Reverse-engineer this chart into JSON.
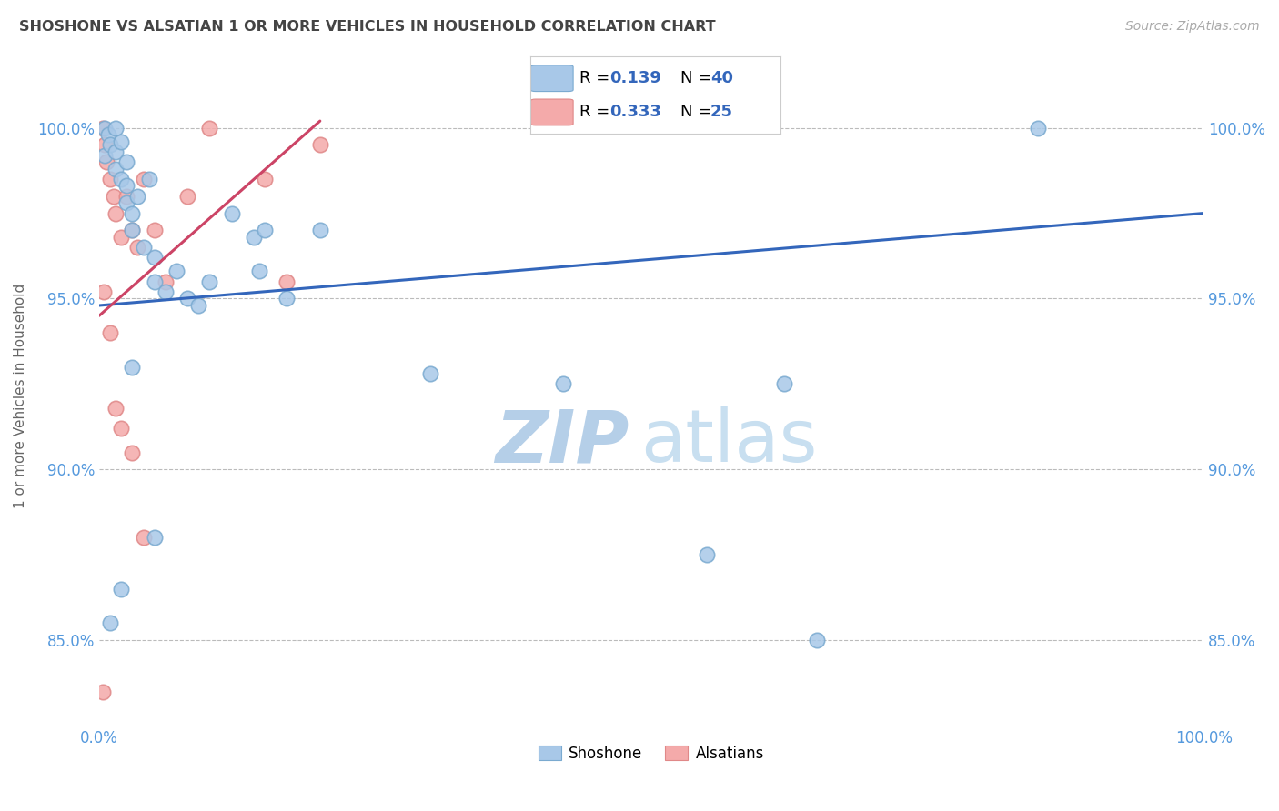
{
  "title": "SHOSHONE VS ALSATIAN 1 OR MORE VEHICLES IN HOUSEHOLD CORRELATION CHART",
  "source": "Source: ZipAtlas.com",
  "ylabel": "1 or more Vehicles in Household",
  "xlim": [
    0,
    100
  ],
  "ylim": [
    82.5,
    101.8
  ],
  "yticks": [
    85,
    90,
    95,
    100
  ],
  "ytick_labels": [
    "85.0%",
    "90.0%",
    "95.0%",
    "100.0%"
  ],
  "xtick_left_label": "0.0%",
  "xtick_right_label": "100.0%",
  "legend_r_blue": "R = 0.139",
  "legend_n_blue": "N = 40",
  "legend_r_pink": "R = 0.333",
  "legend_n_pink": "N = 25",
  "blue_color": "#a8c8e8",
  "pink_color": "#f4aaaa",
  "blue_edge_color": "#7aaad0",
  "pink_edge_color": "#e08888",
  "blue_line_color": "#3366bb",
  "pink_line_color": "#cc4466",
  "grid_color": "#bbbbbb",
  "title_color": "#444444",
  "axis_label_color": "#5599dd",
  "watermark_zip_color": "#c0d8ef",
  "watermark_atlas_color": "#c0d8ef",
  "shoshone_x": [
    0.5,
    0.5,
    0.8,
    1.0,
    1.5,
    1.5,
    1.5,
    2.0,
    2.0,
    2.5,
    2.5,
    2.5,
    3.0,
    3.0,
    3.5,
    4.0,
    4.5,
    5.0,
    5.0,
    6.0,
    7.0,
    8.0,
    9.0,
    10.0,
    12.0,
    14.0,
    14.5,
    15.0,
    17.0,
    20.0,
    30.0,
    42.0,
    55.0,
    62.0,
    65.0,
    85.0,
    1.0,
    2.0,
    3.0,
    5.0
  ],
  "shoshone_y": [
    100.0,
    99.2,
    99.8,
    99.5,
    100.0,
    99.3,
    98.8,
    99.6,
    98.5,
    99.0,
    98.3,
    97.8,
    97.5,
    97.0,
    98.0,
    96.5,
    98.5,
    96.2,
    95.5,
    95.2,
    95.8,
    95.0,
    94.8,
    95.5,
    97.5,
    96.8,
    95.8,
    97.0,
    95.0,
    97.0,
    92.8,
    92.5,
    87.5,
    92.5,
    85.0,
    100.0,
    85.5,
    86.5,
    93.0,
    88.0
  ],
  "alsatian_x": [
    0.3,
    0.5,
    0.7,
    1.0,
    1.3,
    1.5,
    2.0,
    2.5,
    3.0,
    3.5,
    4.0,
    5.0,
    6.0,
    8.0,
    10.0,
    15.0,
    17.0,
    20.0,
    0.4,
    1.0,
    1.5,
    2.0,
    3.0,
    4.0,
    0.3
  ],
  "alsatian_y": [
    100.0,
    99.5,
    99.0,
    98.5,
    98.0,
    97.5,
    96.8,
    98.0,
    97.0,
    96.5,
    98.5,
    97.0,
    95.5,
    98.0,
    100.0,
    98.5,
    95.5,
    99.5,
    95.2,
    94.0,
    91.8,
    91.2,
    90.5,
    88.0,
    83.5
  ],
  "blue_trend_x": [
    0,
    100
  ],
  "blue_trend_y": [
    94.8,
    97.5
  ],
  "pink_trend_x": [
    0,
    20
  ],
  "pink_trend_y": [
    94.5,
    100.2
  ]
}
